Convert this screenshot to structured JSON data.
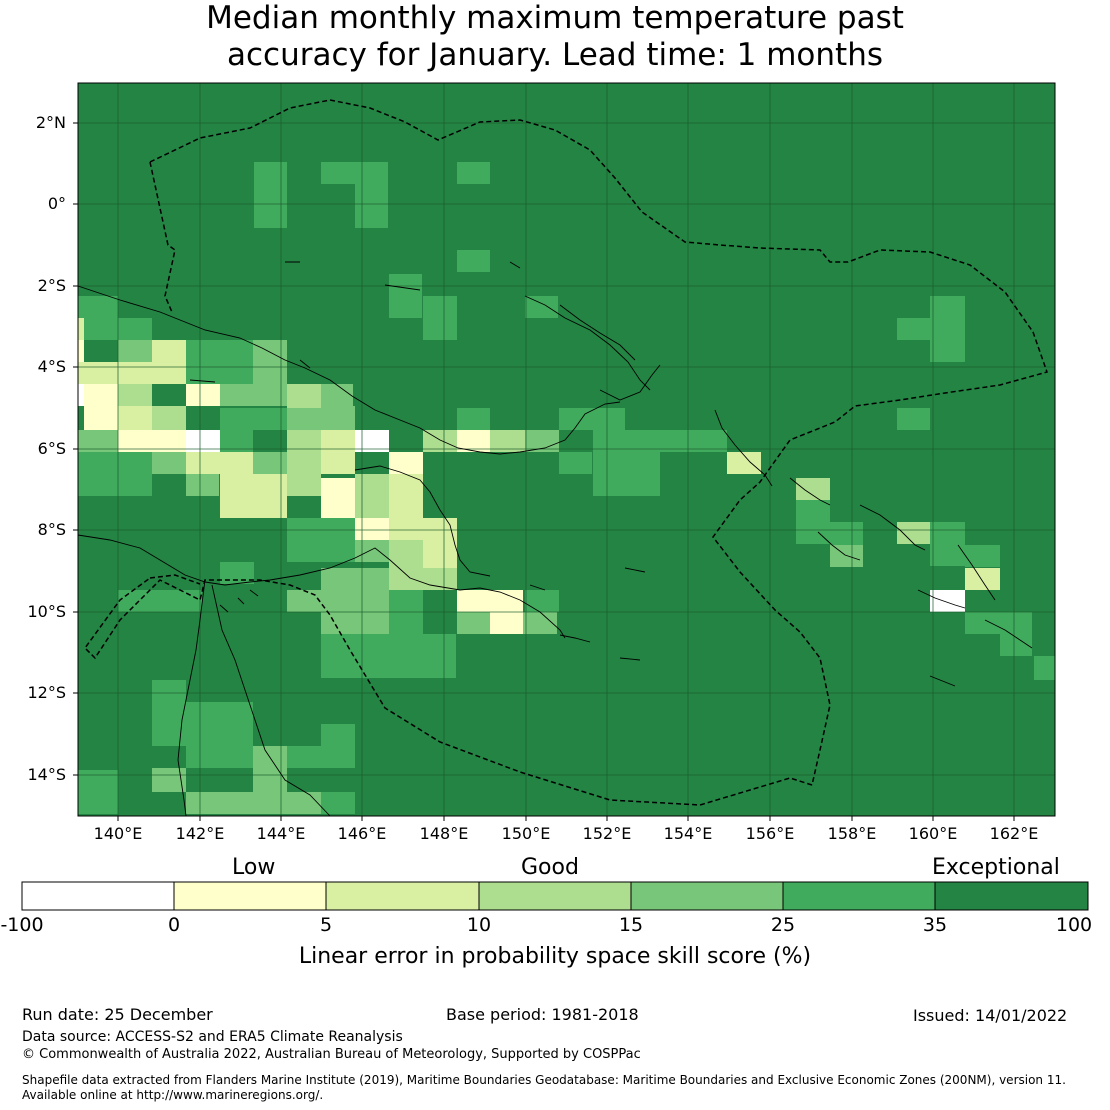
{
  "title_line1": "Median monthly maximum temperature past",
  "title_line2": "accuracy for January. Lead time: 1 months",
  "lat_labels": [
    "2°N",
    "0°",
    "2°S",
    "4°S",
    "6°S",
    "8°S",
    "10°S",
    "12°S",
    "14°S"
  ],
  "lon_labels": [
    "140°E",
    "142°E",
    "144°E",
    "146°E",
    "148°E",
    "150°E",
    "152°E",
    "154°E",
    "156°E",
    "158°E",
    "160°E",
    "162°E"
  ],
  "colorbar": {
    "low_label": "Low",
    "good_label": "Good",
    "exceptional_label": "Exceptional",
    "ticks": [
      "-100",
      "0",
      "5",
      "10",
      "15",
      "25",
      "35",
      "100"
    ],
    "colors": [
      "#ffffff",
      "#ffffcc",
      "#d9f0a3",
      "#addd8e",
      "#78c679",
      "#41ab5d",
      "#238443"
    ],
    "title": "Linear error in probability space skill score (%)"
  },
  "footer": {
    "run_date": "Run date: 25 December",
    "base_period": "Base period: 1981-2018",
    "issued": "Issued: 14/01/2022",
    "data_source": "Data source: ACCESS-S2 and ERA5 Climate Reanalysis",
    "copyright": "© Commonwealth of Australia 2022, Australian Bureau of Meteorology, Supported by COSPPac",
    "shapefile_line1": "Shapefile data extracted from Flanders Marine Institute (2019), Maritime Boundaries Geodatabase: Maritime Boundaries and Exclusive Economic Zones (200NM), version 11.",
    "shapefile_line2": "Available online at http://www.marineregions.org/."
  }
}
